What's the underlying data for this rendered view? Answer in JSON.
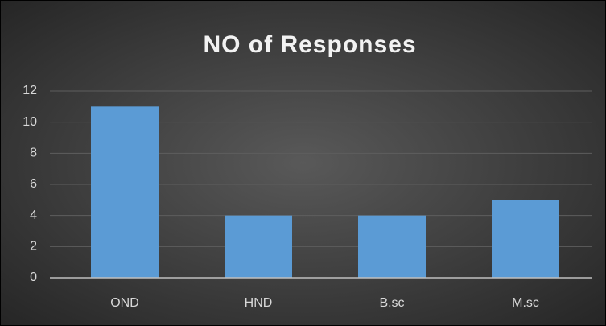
{
  "chart_data": {
    "type": "bar",
    "title": "NO of Responses",
    "categories": [
      "OND",
      "HND",
      "B.sc",
      "M.sc"
    ],
    "values": [
      11,
      4,
      4,
      5
    ],
    "color": "#5b9bd5",
    "ylim": [
      0,
      12
    ],
    "yticks": [
      0,
      2,
      4,
      6,
      8,
      10,
      12
    ],
    "grid": true
  }
}
